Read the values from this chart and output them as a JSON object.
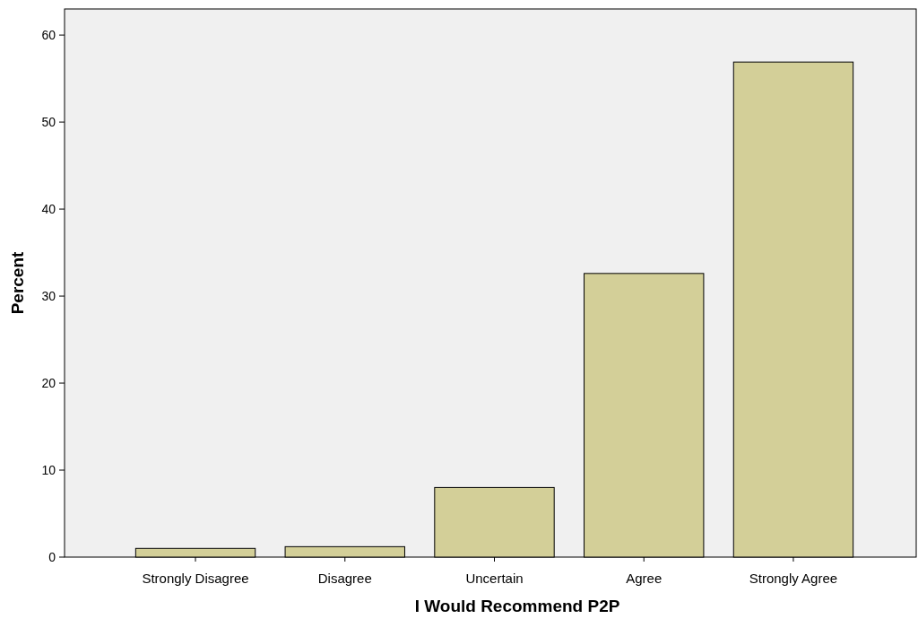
{
  "chart_data": {
    "type": "bar",
    "xlabel": "I Would Recommend P2P",
    "ylabel": "Percent",
    "categories": [
      "Strongly Disagree",
      "Disagree",
      "Uncertain",
      "Agree",
      "Strongly Agree"
    ],
    "values": [
      1.0,
      1.2,
      8.0,
      32.6,
      56.9
    ],
    "color": "#d3cf98",
    "ylim": [
      0,
      63
    ],
    "yticks": [
      0,
      10,
      20,
      30,
      40,
      50,
      60
    ],
    "grid": false
  }
}
